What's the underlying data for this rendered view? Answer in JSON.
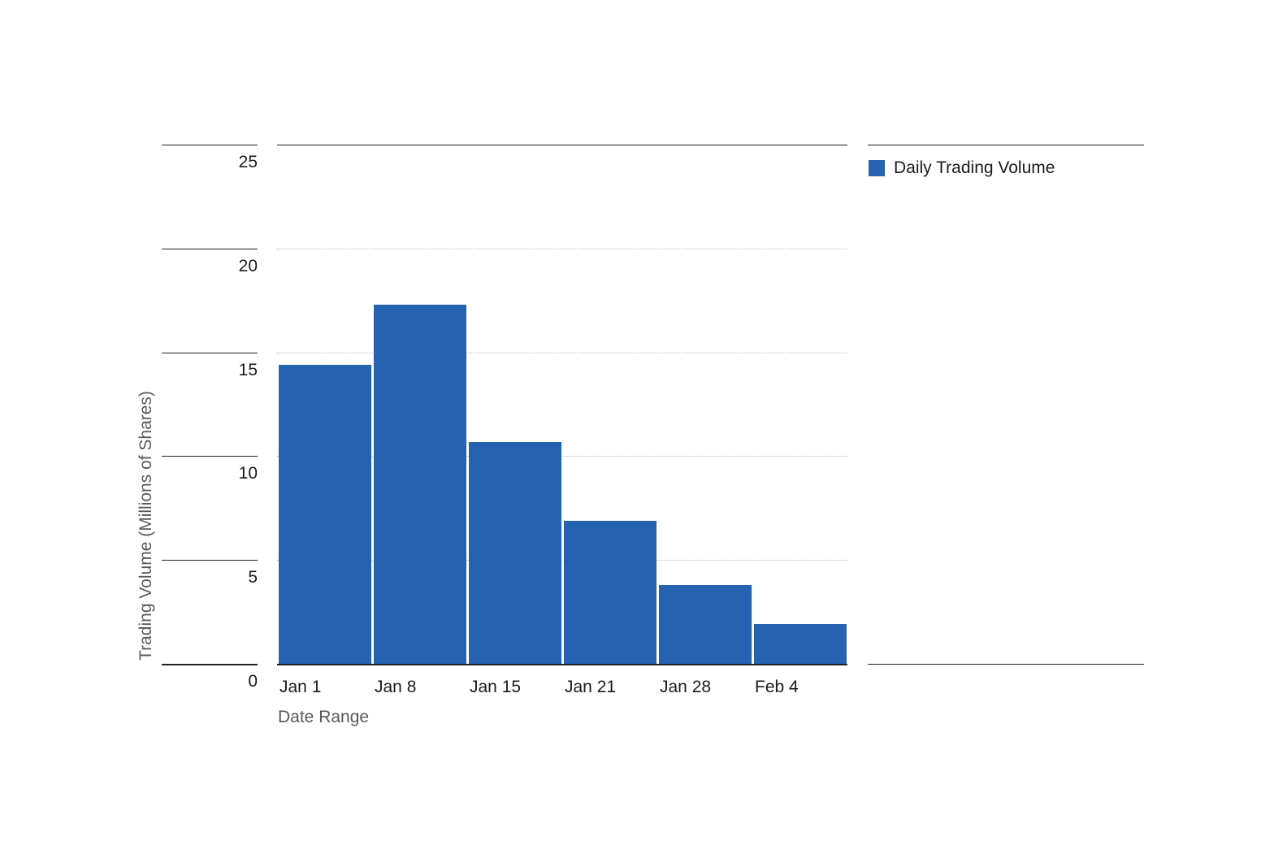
{
  "chart_data": {
    "type": "bar",
    "series_name": "Daily Trading Volume",
    "categories": [
      "Jan 1",
      "Jan 8",
      "Jan 15",
      "Jan 21",
      "Jan 28",
      "Feb 4"
    ],
    "values": [
      14.4,
      17.3,
      10.7,
      6.9,
      3.8,
      1.9
    ],
    "xlabel": "Date Range",
    "ylabel": "Trading Volume (Millions of Shares)",
    "ylim": [
      0,
      25
    ],
    "yticks": [
      0,
      5,
      10,
      15,
      20,
      25
    ],
    "bar_color": "#2563b1",
    "grid": "horizontal-dotted",
    "legend_position": "top-right"
  },
  "legend": {
    "label": "Daily Trading Volume",
    "swatch_color": "#2563b1"
  }
}
